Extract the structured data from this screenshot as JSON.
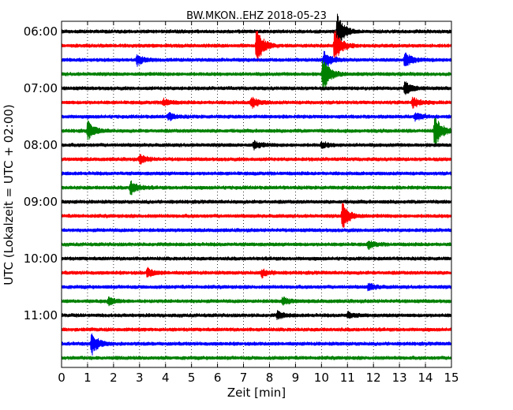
{
  "chart_data": {
    "type": "line",
    "title": "BW.MKON..EHZ 2018-05-23",
    "xlabel": "Zeit  [min]",
    "ylabel": "UTC (Lokalzeit = UTC + 02:00)",
    "xlim": [
      0,
      15
    ],
    "x_ticks": [
      "0",
      "1",
      "2",
      "3",
      "4",
      "5",
      "6",
      "7",
      "8",
      "9",
      "10",
      "11",
      "12",
      "13",
      "14",
      "15"
    ],
    "y_ticks": [
      "06:00",
      "07:00",
      "08:00",
      "09:00",
      "10:00",
      "11:00"
    ],
    "grid": "vertical-dotted",
    "row_interval_minutes": 15,
    "colors": [
      "#000000",
      "#ff0000",
      "#0000ff",
      "#008000"
    ],
    "series": [
      {
        "start": "06:00",
        "color": "#000000",
        "events": [
          {
            "x": 10.6,
            "amp": 1.0
          }
        ]
      },
      {
        "start": "06:15",
        "color": "#ff0000",
        "events": [
          {
            "x": 7.5,
            "amp": 1.0
          },
          {
            "x": 10.5,
            "amp": 0.9
          }
        ]
      },
      {
        "start": "06:30",
        "color": "#0000ff",
        "events": [
          {
            "x": 2.9,
            "amp": 0.3
          },
          {
            "x": 10.1,
            "amp": 0.5
          },
          {
            "x": 13.2,
            "amp": 0.4
          }
        ]
      },
      {
        "start": "06:45",
        "color": "#008000",
        "events": [
          {
            "x": 10.05,
            "amp": 1.0
          }
        ]
      },
      {
        "start": "07:00",
        "color": "#000000",
        "events": [
          {
            "x": 13.2,
            "amp": 0.35
          }
        ]
      },
      {
        "start": "07:15",
        "color": "#ff0000",
        "events": [
          {
            "x": 3.9,
            "amp": 0.2
          },
          {
            "x": 7.3,
            "amp": 0.3
          },
          {
            "x": 13.5,
            "amp": 0.3
          }
        ]
      },
      {
        "start": "07:30",
        "color": "#0000ff",
        "events": [
          {
            "x": 4.1,
            "amp": 0.2
          },
          {
            "x": 13.6,
            "amp": 0.2
          }
        ]
      },
      {
        "start": "07:45",
        "color": "#008000",
        "events": [
          {
            "x": 1.0,
            "amp": 0.5
          },
          {
            "x": 14.35,
            "amp": 1.0
          }
        ]
      },
      {
        "start": "08:00",
        "color": "#000000",
        "events": [
          {
            "x": 7.4,
            "amp": 0.2
          },
          {
            "x": 10.0,
            "amp": 0.15
          }
        ]
      },
      {
        "start": "08:15",
        "color": "#ff0000",
        "events": [
          {
            "x": 3.0,
            "amp": 0.25
          }
        ]
      },
      {
        "start": "08:30",
        "color": "#0000ff",
        "events": []
      },
      {
        "start": "08:45",
        "color": "#008000",
        "events": [
          {
            "x": 2.65,
            "amp": 0.4
          }
        ]
      },
      {
        "start": "09:00",
        "color": "#000000",
        "events": []
      },
      {
        "start": "09:15",
        "color": "#ff0000",
        "events": [
          {
            "x": 10.8,
            "amp": 0.7
          }
        ]
      },
      {
        "start": "09:30",
        "color": "#0000ff",
        "events": []
      },
      {
        "start": "09:45",
        "color": "#008000",
        "events": [
          {
            "x": 11.8,
            "amp": 0.2
          }
        ]
      },
      {
        "start": "10:00",
        "color": "#000000",
        "events": []
      },
      {
        "start": "10:15",
        "color": "#ff0000",
        "events": [
          {
            "x": 3.3,
            "amp": 0.25
          },
          {
            "x": 7.7,
            "amp": 0.2
          }
        ]
      },
      {
        "start": "10:30",
        "color": "#0000ff",
        "events": [
          {
            "x": 11.8,
            "amp": 0.2
          }
        ]
      },
      {
        "start": "10:45",
        "color": "#008000",
        "events": [
          {
            "x": 1.8,
            "amp": 0.2
          },
          {
            "x": 8.5,
            "amp": 0.2
          }
        ]
      },
      {
        "start": "11:00",
        "color": "#000000",
        "events": [
          {
            "x": 8.3,
            "amp": 0.2
          },
          {
            "x": 11.0,
            "amp": 0.15
          }
        ]
      },
      {
        "start": "11:15",
        "color": "#ff0000",
        "events": []
      },
      {
        "start": "11:30",
        "color": "#0000ff",
        "events": [
          {
            "x": 1.15,
            "amp": 0.6
          }
        ]
      },
      {
        "start": "11:45",
        "color": "#008000",
        "events": []
      }
    ]
  }
}
